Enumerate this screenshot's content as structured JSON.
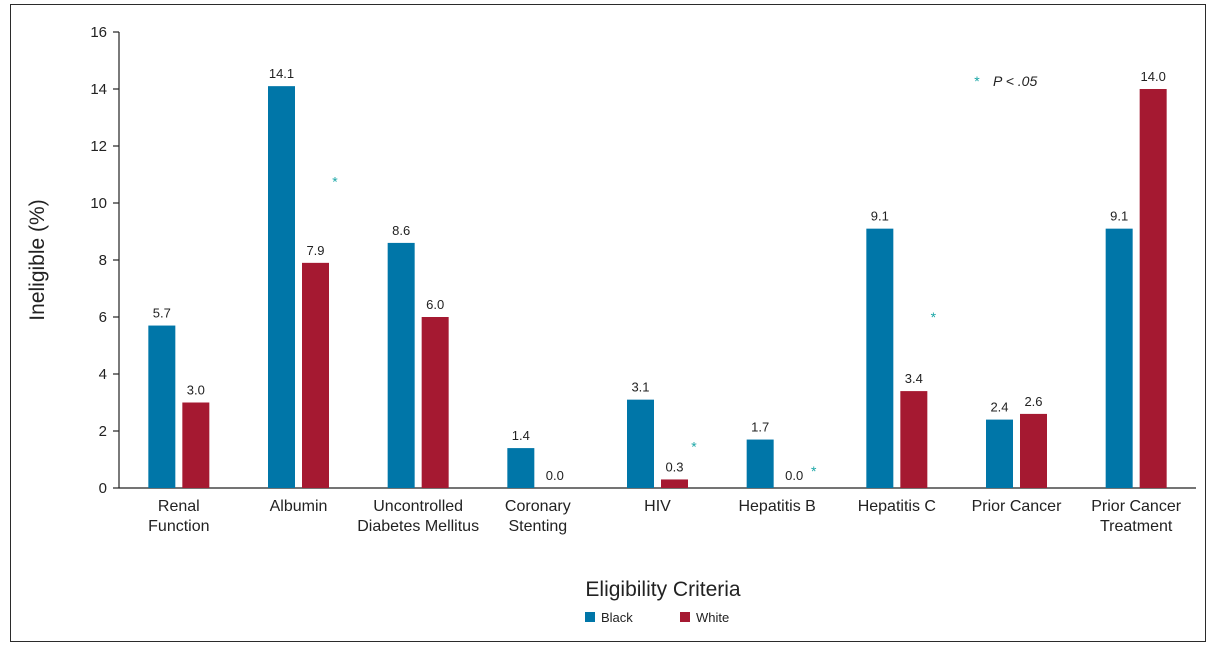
{
  "chart_data": {
    "type": "bar",
    "categories": [
      [
        "Renal",
        "Function"
      ],
      [
        "Albumin"
      ],
      [
        "Uncontrolled",
        "Diabetes Mellitus"
      ],
      [
        "Coronary",
        "Stenting"
      ],
      [
        "HIV"
      ],
      [
        "Hepatitis B"
      ],
      [
        "Hepatitis C"
      ],
      [
        "Prior Cancer"
      ],
      [
        "Prior Cancer",
        "Treatment"
      ]
    ],
    "series": [
      {
        "name": "Black",
        "color": "#0076a8",
        "values": [
          5.7,
          14.1,
          8.6,
          1.4,
          3.1,
          1.7,
          9.1,
          2.4,
          9.1
        ]
      },
      {
        "name": "White",
        "color": "#a51931",
        "values": [
          3.0,
          7.9,
          6.0,
          0.0,
          0.3,
          0.0,
          3.4,
          2.6,
          14.0
        ]
      }
    ],
    "data_labels": [
      [
        "5.7",
        "14.1",
        "8.6",
        "1.4",
        "3.1",
        "1.7",
        "9.1",
        "2.4",
        "9.1"
      ],
      [
        "3.0",
        "7.9",
        "6.0",
        "0.0",
        "0.3",
        "0.0",
        "3.4",
        "2.6",
        "14.0"
      ]
    ],
    "significant": [
      false,
      true,
      false,
      false,
      true,
      true,
      true,
      false,
      false
    ],
    "significance_marker": "*",
    "significance_note": {
      "symbol": "*",
      "text": "P < .05"
    },
    "ylabel": "Ineligible (%)",
    "xlabel": "Eligibility Criteria",
    "ylim": [
      0,
      16
    ],
    "yticks": [
      0,
      2,
      4,
      6,
      8,
      10,
      12,
      14,
      16
    ],
    "grid": false,
    "legend_position": "bottom-center",
    "marker_color": "#1aa6a6"
  }
}
